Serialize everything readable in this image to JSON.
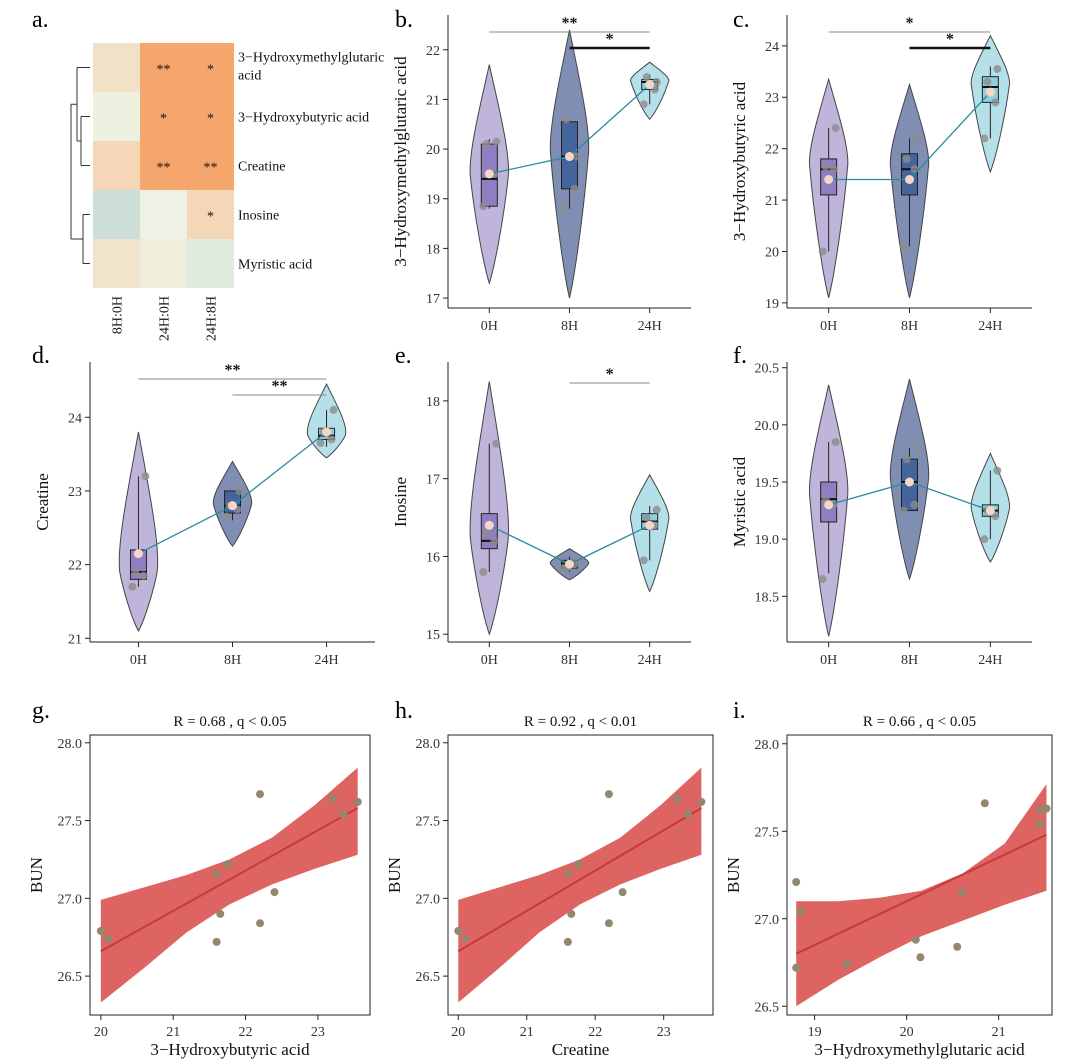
{
  "figure_labels": [
    "a.",
    "b.",
    "c.",
    "d.",
    "e.",
    "f.",
    "g.",
    "h.",
    "i."
  ],
  "colors": {
    "group_0h": "#b4a8d4",
    "group_8h": "#6a7aa6",
    "group_24h": "#a8dbe6",
    "box_0h": "#8f7fc2",
    "box_8h": "#44659c",
    "box_24h": "#8fd0df",
    "mean_line": "#2a8aa0",
    "mean_dot": "#f7d6c8",
    "point": "#8c8c8c",
    "ribbon": "#d9534f",
    "fit_line": "#c8393a",
    "scatter_point": "#948770",
    "heat_high": "#f5a66c",
    "heat_mid": "#f3d5b3",
    "heat_low": "#c5d9d6"
  },
  "chart_data": [
    {
      "id": "a",
      "type": "heatmap",
      "columns": [
        "8H:0H",
        "24H:0H",
        "24H:8H"
      ],
      "rows": [
        "3−Hydroxymethylglutaric acid",
        "3−Hydroxybutyric acid",
        "Creatine",
        "Inosine",
        "Myristic acid"
      ],
      "values": [
        [
          0.35,
          1.0,
          1.0
        ],
        [
          0.05,
          1.0,
          1.0
        ],
        [
          0.55,
          1.0,
          1.0
        ],
        [
          -0.8,
          0.0,
          0.55
        ],
        [
          0.3,
          0.1,
          -0.3
        ]
      ],
      "stars": [
        [
          "",
          "**",
          "*"
        ],
        [
          "",
          "*",
          "*"
        ],
        [
          "",
          "**",
          "**"
        ],
        [
          "",
          "",
          "*"
        ],
        [
          "",
          "",
          ""
        ]
      ]
    },
    {
      "id": "b",
      "type": "violin",
      "ylabel": "3−Hydroxymethylglutaric acid",
      "categories": [
        "0H",
        "8H",
        "24H"
      ],
      "yticks": [
        17,
        18,
        19,
        20,
        21,
        22
      ],
      "ylim": [
        16.8,
        22.7
      ],
      "means": [
        19.5,
        19.85,
        21.3
      ],
      "boxes": [
        [
          18.85,
          19.4,
          20.1
        ],
        [
          19.2,
          19.85,
          20.55
        ],
        [
          21.2,
          21.35,
          21.4
        ]
      ],
      "whiskers": [
        [
          18.8,
          20.2
        ],
        [
          18.8,
          20.6
        ],
        [
          20.9,
          21.5
        ]
      ],
      "points": [
        [
          18.85,
          19.5,
          20.15,
          20.1
        ],
        [
          18.8,
          19.2,
          19.85,
          20.6
        ],
        [
          20.9,
          21.2,
          21.35,
          21.45
        ]
      ],
      "violins": [
        [
          17.3,
          21.7
        ],
        [
          17.0,
          22.4
        ],
        [
          20.6,
          21.75
        ]
      ],
      "brackets": [
        {
          "from": 0,
          "to": 2,
          "label": "**",
          "bold": false
        },
        {
          "from": 1,
          "to": 2,
          "label": "*",
          "bold": true
        }
      ]
    },
    {
      "id": "c",
      "type": "violin",
      "ylabel": "3−Hydroxybutyric acid",
      "categories": [
        "0H",
        "8H",
        "24H"
      ],
      "yticks": [
        19,
        20,
        21,
        22,
        23,
        24
      ],
      "ylim": [
        18.9,
        24.6
      ],
      "means": [
        21.4,
        21.4,
        23.1
      ],
      "boxes": [
        [
          21.1,
          21.6,
          21.8
        ],
        [
          21.1,
          21.6,
          21.9
        ],
        [
          22.9,
          23.2,
          23.4
        ]
      ],
      "whiskers": [
        [
          20.0,
          22.4
        ],
        [
          20.1,
          22.2
        ],
        [
          22.2,
          23.6
        ]
      ],
      "points": [
        [
          20.0,
          21.6,
          22.4,
          21.65
        ],
        [
          20.1,
          21.6,
          22.2,
          21.8
        ],
        [
          22.2,
          22.9,
          23.55,
          23.3
        ]
      ],
      "violins": [
        [
          19.1,
          23.35
        ],
        [
          19.1,
          23.25
        ],
        [
          21.55,
          24.2
        ]
      ],
      "brackets": [
        {
          "from": 0,
          "to": 2,
          "label": "*",
          "bold": false
        },
        {
          "from": 1,
          "to": 2,
          "label": "*",
          "bold": true
        }
      ]
    },
    {
      "id": "d",
      "type": "violin",
      "ylabel": "Creatine",
      "categories": [
        "0H",
        "8H",
        "24H"
      ],
      "yticks": [
        21,
        22,
        23,
        24
      ],
      "ylim": [
        20.95,
        24.75
      ],
      "means": [
        22.15,
        22.8,
        23.8
      ],
      "boxes": [
        [
          21.8,
          21.9,
          22.2
        ],
        [
          22.7,
          22.8,
          23.0
        ],
        [
          23.7,
          23.75,
          23.85
        ]
      ],
      "whiskers": [
        [
          21.7,
          23.2
        ],
        [
          22.6,
          23.0
        ],
        [
          23.6,
          24.1
        ]
      ],
      "points": [
        [
          21.7,
          21.85,
          23.2,
          21.9
        ],
        [
          22.65,
          22.75,
          23.0,
          22.8
        ],
        [
          23.65,
          23.7,
          24.1,
          23.8
        ]
      ],
      "violins": [
        [
          21.1,
          23.8
        ],
        [
          22.25,
          23.4
        ],
        [
          23.45,
          24.45
        ]
      ],
      "brackets": [
        {
          "from": 0,
          "to": 2,
          "label": "**",
          "bold": false
        },
        {
          "from": 1,
          "to": 2,
          "label": "**",
          "bold": false
        }
      ]
    },
    {
      "id": "e",
      "type": "violin",
      "ylabel": "Inosine",
      "categories": [
        "0H",
        "8H",
        "24H"
      ],
      "yticks": [
        15,
        16,
        17,
        18
      ],
      "ylim": [
        14.9,
        18.5
      ],
      "means": [
        16.4,
        15.9,
        16.4
      ],
      "boxes": [
        [
          16.1,
          16.2,
          16.55
        ],
        [
          15.85,
          15.9,
          15.95
        ],
        [
          16.35,
          16.45,
          16.55
        ]
      ],
      "whiskers": [
        [
          15.8,
          17.45
        ],
        [
          15.8,
          16.0
        ],
        [
          15.95,
          16.65
        ]
      ],
      "points": [
        [
          15.8,
          16.2,
          17.45,
          16.3
        ],
        [
          15.85,
          15.9,
          15.95,
          15.85
        ],
        [
          15.95,
          16.4,
          16.6,
          16.5
        ]
      ],
      "violins": [
        [
          15.0,
          18.25
        ],
        [
          15.7,
          16.1
        ],
        [
          15.55,
          17.05
        ]
      ],
      "brackets": [
        {
          "from": 1,
          "to": 2,
          "label": "*",
          "bold": false
        }
      ]
    },
    {
      "id": "f",
      "type": "violin",
      "ylabel": "Myristic acid",
      "categories": [
        "0H",
        "8H",
        "24H"
      ],
      "yticks": [
        18.5,
        19.0,
        19.5,
        20.0,
        20.5
      ],
      "ylim": [
        18.1,
        20.55
      ],
      "means": [
        19.3,
        19.5,
        19.25
      ],
      "boxes": [
        [
          19.15,
          19.35,
          19.5
        ],
        [
          19.25,
          19.5,
          19.7
        ],
        [
          19.2,
          19.25,
          19.3
        ]
      ],
      "whiskers": [
        [
          18.7,
          19.85
        ],
        [
          19.25,
          19.8
        ],
        [
          19.0,
          19.6
        ]
      ],
      "points": [
        [
          18.65,
          19.3,
          19.85,
          19.35
        ],
        [
          19.25,
          19.3,
          19.8,
          19.7
        ],
        [
          19.0,
          19.2,
          19.6,
          19.25
        ]
      ],
      "violins": [
        [
          18.15,
          20.35
        ],
        [
          18.65,
          20.4
        ],
        [
          18.8,
          19.75
        ]
      ],
      "brackets": []
    },
    {
      "id": "g",
      "type": "scatter",
      "title": "R = 0.68 , q < 0.05",
      "xlabel": "3−Hydroxybutyric acid",
      "ylabel": "BUN",
      "xlim": [
        19.85,
        23.72
      ],
      "ylim": [
        26.25,
        28.05
      ],
      "xticks": [
        20,
        21,
        22,
        23
      ],
      "yticks": [
        26.5,
        27.0,
        27.5,
        28.0
      ],
      "x": [
        20.0,
        20.1,
        21.6,
        21.6,
        21.65,
        21.75,
        22.2,
        22.2,
        22.4,
        23.2,
        23.35,
        23.55
      ],
      "y": [
        26.79,
        26.74,
        27.16,
        26.72,
        26.9,
        27.22,
        26.84,
        27.67,
        27.04,
        27.64,
        27.54,
        27.62
      ],
      "fit": {
        "x0": 20.0,
        "y0": 26.66,
        "x1": 23.55,
        "y1": 27.58
      },
      "band_lower": [
        26.33,
        26.55,
        26.78,
        26.96,
        27.09,
        27.19,
        27.28
      ],
      "band_upper": [
        26.99,
        27.07,
        27.15,
        27.25,
        27.39,
        27.6,
        27.84
      ]
    },
    {
      "id": "h",
      "type": "scatter",
      "title": "R = 0.92 , q < 0.01",
      "xlabel": "Creatine",
      "ylabel": "BUN",
      "xlim": [
        19.85,
        23.72
      ],
      "ylim": [
        26.25,
        28.05
      ],
      "xticks": [
        20,
        21,
        22,
        23
      ],
      "yticks": [
        26.5,
        27.0,
        27.5,
        28.0
      ],
      "x": [
        20.0,
        20.1,
        21.6,
        21.6,
        21.65,
        21.75,
        22.2,
        22.2,
        22.4,
        23.2,
        23.35,
        23.55
      ],
      "y": [
        26.79,
        26.74,
        27.16,
        26.72,
        26.9,
        27.22,
        26.84,
        27.67,
        27.04,
        27.64,
        27.54,
        27.62
      ],
      "fit": {
        "x0": 20.0,
        "y0": 26.66,
        "x1": 23.55,
        "y1": 27.58
      },
      "band_lower": [
        26.33,
        26.55,
        26.78,
        26.96,
        27.09,
        27.19,
        27.28
      ],
      "band_upper": [
        26.99,
        27.07,
        27.15,
        27.25,
        27.39,
        27.6,
        27.84
      ]
    },
    {
      "id": "i",
      "type": "scatter",
      "title": "R = 0.66 , q < 0.05",
      "xlabel": "3−Hydroxymethylglutaric acid",
      "ylabel": "BUN",
      "xlim": [
        18.7,
        21.58
      ],
      "ylim": [
        26.45,
        28.05
      ],
      "xticks": [
        19,
        20,
        21
      ],
      "yticks": [
        26.5,
        27.0,
        27.5,
        28.0
      ],
      "x": [
        18.8,
        18.8,
        18.85,
        19.35,
        20.1,
        20.15,
        20.55,
        20.6,
        20.85,
        21.45,
        21.45,
        21.52
      ],
      "y": [
        27.21,
        26.72,
        27.04,
        26.74,
        26.88,
        26.78,
        26.84,
        27.15,
        27.66,
        27.62,
        27.54,
        27.63
      ],
      "fit": {
        "x0": 18.8,
        "y0": 26.8,
        "x1": 21.52,
        "y1": 27.48
      },
      "band_lower": [
        26.5,
        26.65,
        26.78,
        26.9,
        26.99,
        27.08,
        27.16
      ],
      "band_upper": [
        27.1,
        27.1,
        27.12,
        27.16,
        27.26,
        27.43,
        27.77
      ]
    }
  ]
}
